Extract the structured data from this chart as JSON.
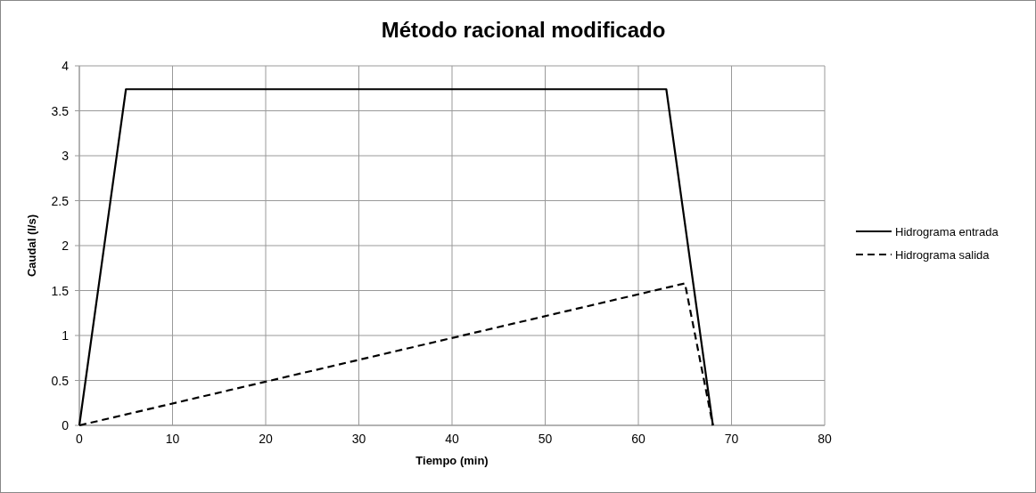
{
  "chart_data": {
    "type": "line",
    "title": "Método racional modificado",
    "xlabel": "Tiempo (min)",
    "ylabel": "Caudal (l/s)",
    "xlim": [
      0,
      80
    ],
    "xticks": [
      0,
      10,
      20,
      30,
      40,
      50,
      60,
      70,
      80
    ],
    "ylim": [
      0,
      4
    ],
    "yticks": [
      0,
      0.5,
      1,
      1.5,
      2,
      2.5,
      3,
      3.5,
      4
    ],
    "grid": true,
    "legend": "right",
    "series": [
      {
        "name": "Hidrograma entrada",
        "color": "#000000",
        "line_style": "solid",
        "x": [
          0,
          5,
          63,
          68
        ],
        "values": [
          0,
          3.74,
          3.74,
          0
        ]
      },
      {
        "name": "Hidrograma salida",
        "color": "#000000",
        "line_style": "dashed",
        "x": [
          0,
          65,
          68
        ],
        "values": [
          0,
          1.58,
          0
        ]
      }
    ]
  }
}
